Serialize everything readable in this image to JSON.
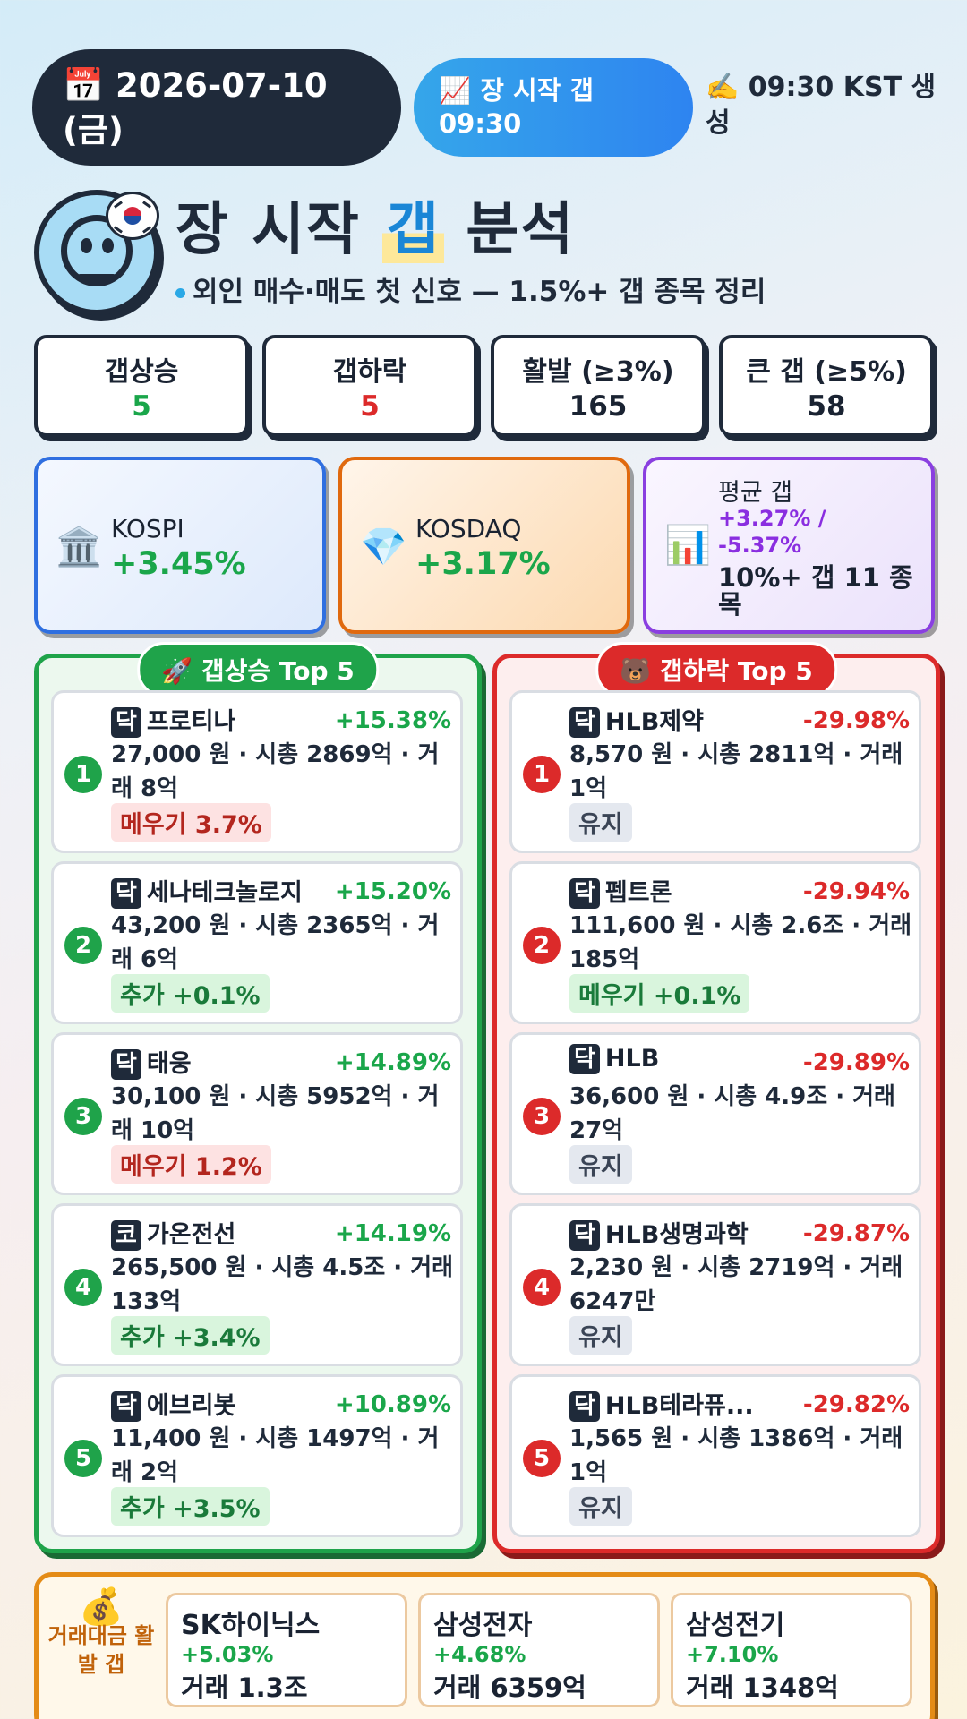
{
  "header": {
    "date": "📅 2026-07-10 (금)",
    "session": "📈 장 시작 갭 09:30",
    "generated": "✍️ 09:30 KST 생성"
  },
  "title": {
    "pre": "장 시작 ",
    "highlight": "갭",
    "post": " 분석"
  },
  "subtitle": "외인 매수·매도 첫 신호 — 1.5%+ 갭 종목 정리",
  "stats": [
    {
      "label": "갭상승",
      "value": "5",
      "color": "#1aa64a"
    },
    {
      "label": "갭하락",
      "value": "5",
      "color": "#dc2a2a"
    },
    {
      "label": "활발 (≥3%)",
      "value": "165",
      "color": "#1f2a3a"
    },
    {
      "label": "큰 갭 (≥5%)",
      "value": "58",
      "color": "#1f2a3a"
    }
  ],
  "indices": {
    "kospi": {
      "icon": "🏛️",
      "name": "KOSPI",
      "pct": "+3.45%"
    },
    "kosdaq": {
      "icon": "💎",
      "name": "KOSDAQ",
      "pct": "+3.17%"
    },
    "avg": {
      "icon": "📊",
      "label": "평균 갭",
      "values": "+3.27% / -5.37%",
      "count": "10%+ 갭 11 종목"
    }
  },
  "gap_up": {
    "title": "🚀 갭상승 Top 5",
    "items": [
      {
        "rank": "1",
        "market": "닥",
        "name": "프로티나",
        "pct": "+15.38%",
        "desc": "27,000 원 · 시총 2869억 · 거래 8억",
        "tag": "메우기 3.7%",
        "tag_type": "red"
      },
      {
        "rank": "2",
        "market": "닥",
        "name": "세나테크놀로지",
        "pct": "+15.20%",
        "desc": "43,200 원 · 시총 2365억 · 거래 6억",
        "tag": "추가 +0.1%",
        "tag_type": "green"
      },
      {
        "rank": "3",
        "market": "닥",
        "name": "태웅",
        "pct": "+14.89%",
        "desc": "30,100 원 · 시총 5952억 · 거래 10억",
        "tag": "메우기 1.2%",
        "tag_type": "red"
      },
      {
        "rank": "4",
        "market": "코",
        "name": "가온전선",
        "pct": "+14.19%",
        "desc": "265,500 원 · 시총 4.5조 · 거래 133억",
        "tag": "추가 +3.4%",
        "tag_type": "green"
      },
      {
        "rank": "5",
        "market": "닥",
        "name": "에브리봇",
        "pct": "+10.89%",
        "desc": "11,400 원 · 시총 1497억 · 거래 2억",
        "tag": "추가 +3.5%",
        "tag_type": "green"
      }
    ]
  },
  "gap_down": {
    "title": "🐻 갭하락 Top 5",
    "items": [
      {
        "rank": "1",
        "market": "닥",
        "name": "HLB제약",
        "pct": "-29.98%",
        "desc": "8,570 원 · 시총 2811억 · 거래 1억",
        "tag": "유지",
        "tag_type": "gray"
      },
      {
        "rank": "2",
        "market": "닥",
        "name": "펩트론",
        "pct": "-29.94%",
        "desc": "111,600 원 · 시총 2.6조 · 거래 185억",
        "tag": "메우기 +0.1%",
        "tag_type": "green"
      },
      {
        "rank": "3",
        "market": "닥",
        "name": "HLB",
        "pct": "-29.89%",
        "desc": "36,600 원 · 시총 4.9조 · 거래 27억",
        "tag": "유지",
        "tag_type": "gray"
      },
      {
        "rank": "4",
        "market": "닥",
        "name": "HLB생명과학",
        "pct": "-29.87%",
        "desc": "2,230 원 · 시총 2719억 · 거래 6247만",
        "tag": "유지",
        "tag_type": "gray"
      },
      {
        "rank": "5",
        "market": "닥",
        "name": "HLB테라퓨...",
        "pct": "-29.82%",
        "desc": "1,565 원 · 시총 1386억 · 거래 1억",
        "tag": "유지",
        "tag_type": "gray"
      }
    ]
  },
  "volume": {
    "icon": "💰",
    "title": "거래대금 활발 갭",
    "items": [
      {
        "name": "SK하이닉스",
        "pct": "+5.03%",
        "vol": "거래 1.3조"
      },
      {
        "name": "삼성전자",
        "pct": "+4.68%",
        "vol": "거래 6359억"
      },
      {
        "name": "삼성전기",
        "pct": "+7.10%",
        "vol": "거래 1348억"
      }
    ]
  }
}
